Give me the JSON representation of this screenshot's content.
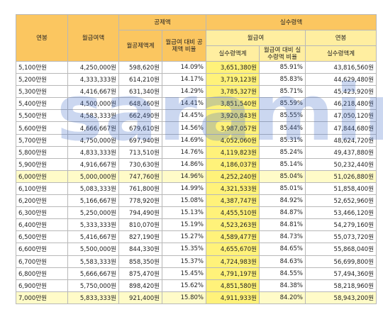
{
  "watermark": "saramin",
  "table": {
    "header": {
      "annual_salary": "연봉",
      "monthly_pay": "월급여액",
      "deduction": "공제액",
      "net_pay": "실수령액",
      "monthly_deduction_total": "월공제액계",
      "deduction_ratio": "월급여 대비 공제액 비율",
      "monthly": "월급여",
      "annual": "연봉",
      "monthly_net_total": "실수령액계",
      "net_ratio": "월급여 대비 실수령액 비율",
      "annual_net_total": "실수령액계"
    },
    "rows": [
      [
        "5,100만원",
        "4,250,000원",
        "598,620원",
        "14.09%",
        "3,651,380원",
        "85.91%",
        "43,816,560원"
      ],
      [
        "5,200만원",
        "4,333,333원",
        "614,210원",
        "14.17%",
        "3,719,123원",
        "85.83%",
        "44,629,480원"
      ],
      [
        "5,300만원",
        "4,416,667원",
        "631,340원",
        "14.29%",
        "3,785,327원",
        "85.71%",
        "45,423,920원"
      ],
      [
        "5,400만원",
        "4,500,000원",
        "648,460원",
        "14.41%",
        "3,851,540원",
        "85.59%",
        "46,218,480원"
      ],
      [
        "5,500만원",
        "4,583,333원",
        "662,490원",
        "14.45%",
        "3,920,843원",
        "85.55%",
        "47,050,120원"
      ],
      [
        "5,600만원",
        "4,666,667원",
        "679,610원",
        "14.56%",
        "3,987,057원",
        "85.44%",
        "47,844,680원"
      ],
      [
        "5,700만원",
        "4,750,000원",
        "697,940원",
        "14.69%",
        "4,052,060원",
        "85.31%",
        "48,624,720원"
      ],
      [
        "5,800만원",
        "4,833,333원",
        "713,510원",
        "14.76%",
        "4,119,823원",
        "85.24%",
        "49,437,880원"
      ],
      [
        "5,900만원",
        "4,916,667원",
        "730,630원",
        "14.86%",
        "4,186,037원",
        "85.14%",
        "50,232,440원"
      ],
      [
        "6,000만원",
        "5,000,000원",
        "747,760원",
        "14.96%",
        "4,252,240원",
        "85.04%",
        "51,026,880원"
      ],
      [
        "6,100만원",
        "5,083,333원",
        "761,800원",
        "14.99%",
        "4,321,533원",
        "85.01%",
        "51,858,400원"
      ],
      [
        "6,200만원",
        "5,166,667원",
        "778,920원",
        "15.08%",
        "4,387,747원",
        "84.92%",
        "52,652,960원"
      ],
      [
        "6,300만원",
        "5,250,000원",
        "794,490원",
        "15.13%",
        "4,455,510원",
        "84.87%",
        "53,466,120원"
      ],
      [
        "6,400만원",
        "5,333,333원",
        "810,070원",
        "15.19%",
        "4,523,263원",
        "84.81%",
        "54,279,160원"
      ],
      [
        "6,500만원",
        "5,416,667원",
        "827,190원",
        "15.27%",
        "4,589,477원",
        "84.73%",
        "55,073,720원"
      ],
      [
        "6,600만원",
        "5,500,000원",
        "844,330원",
        "15.35%",
        "4,655,670원",
        "84.65%",
        "55,868,040원"
      ],
      [
        "6,700만원",
        "5,583,333원",
        "858,350원",
        "15.37%",
        "4,724,983원",
        "84.63%",
        "56,699,800원"
      ],
      [
        "6,800만원",
        "5,666,667원",
        "875,470원",
        "15.45%",
        "4,791,197원",
        "84.55%",
        "57,494,360원"
      ],
      [
        "6,900만원",
        "5,750,000원",
        "898,420원",
        "15.62%",
        "4,851,580원",
        "84.38%",
        "58,218,960원"
      ],
      [
        "7,000만원",
        "5,833,333원",
        "921,400원",
        "15.80%",
        "4,911,933원",
        "84.20%",
        "58,943,200원"
      ]
    ]
  }
}
